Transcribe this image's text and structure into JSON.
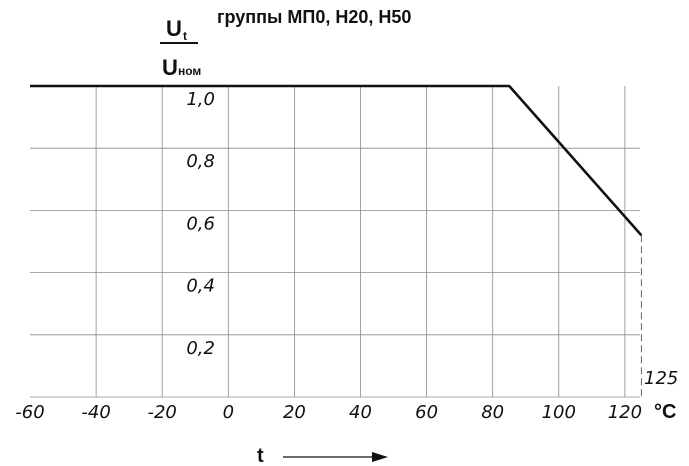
{
  "chart_data": {
    "type": "line",
    "title": "группы МП0, Н20, Н50",
    "ylabel": {
      "numerator": "U",
      "numerator_sub": "t",
      "denominator": "U",
      "denominator_sub": "ном"
    },
    "xlabel": "t",
    "x_unit": "°C",
    "xlim": [
      -60,
      127
    ],
    "ylim": [
      0,
      1.0
    ],
    "x_ticks": [
      "-60",
      "-40",
      "-20",
      "0",
      "20",
      "40",
      "60",
      "80",
      "100",
      "120"
    ],
    "y_ticks": [
      "1,0",
      "0,8",
      "0,6",
      "0,4",
      "0,2"
    ],
    "annotation": "125",
    "grid": true,
    "series": [
      {
        "x": [
          -60,
          85,
          125
        ],
        "y": [
          1.0,
          1.0,
          0.52
        ]
      }
    ]
  }
}
